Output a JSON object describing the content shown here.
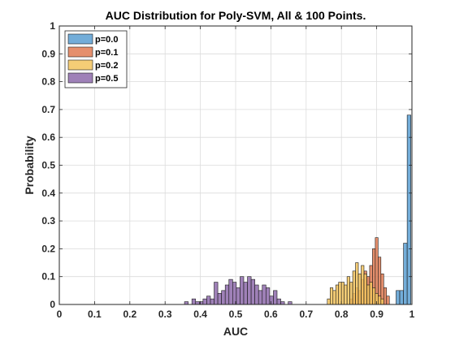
{
  "chart_data": {
    "type": "bar",
    "title": "AUC Distribution for Poly-SVM, All & 100 Points.",
    "xlabel": "AUC",
    "ylabel": "Probability",
    "xlim": [
      0,
      1
    ],
    "ylim": [
      0,
      1
    ],
    "xticks": [
      "0",
      "0.1",
      "0.2",
      "0.3",
      "0.4",
      "0.5",
      "0.6",
      "0.7",
      "0.8",
      "0.9",
      "1"
    ],
    "yticks": [
      "0",
      "0.1",
      "0.2",
      "0.3",
      "0.4",
      "0.5",
      "0.6",
      "0.7",
      "0.8",
      "0.9",
      "1"
    ],
    "grid": true,
    "legend_position": "top-left",
    "series": [
      {
        "name": "p=0.0",
        "color": "#5b9fd2",
        "bin_width": 0.0105,
        "bins": [
          [
            0.955,
            0.05
          ],
          [
            0.9655,
            0.05
          ],
          [
            0.976,
            0.22
          ],
          [
            0.9865,
            0.68
          ]
        ]
      },
      {
        "name": "p=0.1",
        "color": "#e07b54",
        "bin_width": 0.008,
        "bins": [
          [
            0.824,
            0.02
          ],
          [
            0.832,
            0.04
          ],
          [
            0.84,
            0.06
          ],
          [
            0.848,
            0.05
          ],
          [
            0.856,
            0.09
          ],
          [
            0.864,
            0.12
          ],
          [
            0.872,
            0.1
          ],
          [
            0.88,
            0.14
          ],
          [
            0.888,
            0.2
          ],
          [
            0.896,
            0.24
          ],
          [
            0.904,
            0.17
          ],
          [
            0.912,
            0.11
          ],
          [
            0.92,
            0.06
          ],
          [
            0.928,
            0.03
          ]
        ]
      },
      {
        "name": "p=0.2",
        "color": "#f3c45e",
        "bin_width": 0.008,
        "bins": [
          [
            0.76,
            0.02
          ],
          [
            0.768,
            0.06
          ],
          [
            0.776,
            0.05
          ],
          [
            0.784,
            0.07
          ],
          [
            0.792,
            0.08
          ],
          [
            0.8,
            0.08
          ],
          [
            0.808,
            0.07
          ],
          [
            0.816,
            0.1
          ],
          [
            0.824,
            0.08
          ],
          [
            0.832,
            0.12
          ],
          [
            0.84,
            0.15
          ],
          [
            0.848,
            0.11
          ],
          [
            0.856,
            0.14
          ],
          [
            0.864,
            0.11
          ],
          [
            0.872,
            0.07
          ],
          [
            0.88,
            0.08
          ],
          [
            0.888,
            0.06
          ],
          [
            0.896,
            0.04
          ],
          [
            0.904,
            0.03
          ],
          [
            0.912,
            0.02
          ]
        ]
      },
      {
        "name": "p=0.5",
        "color": "#8e6bab",
        "bin_width": 0.0105,
        "bins": [
          [
            0.355,
            0.01
          ],
          [
            0.376,
            0.02
          ],
          [
            0.3865,
            0.01
          ],
          [
            0.397,
            0.01
          ],
          [
            0.4075,
            0.02
          ],
          [
            0.418,
            0.03
          ],
          [
            0.4285,
            0.02
          ],
          [
            0.439,
            0.08
          ],
          [
            0.4495,
            0.04
          ],
          [
            0.46,
            0.05
          ],
          [
            0.4705,
            0.07
          ],
          [
            0.481,
            0.09
          ],
          [
            0.4915,
            0.08
          ],
          [
            0.502,
            0.06
          ],
          [
            0.5125,
            0.1
          ],
          [
            0.523,
            0.08
          ],
          [
            0.5335,
            0.1
          ],
          [
            0.544,
            0.09
          ],
          [
            0.5545,
            0.07
          ],
          [
            0.565,
            0.05
          ],
          [
            0.5755,
            0.07
          ],
          [
            0.586,
            0.06
          ],
          [
            0.5965,
            0.03
          ],
          [
            0.607,
            0.05
          ],
          [
            0.6175,
            0.02
          ],
          [
            0.628,
            0.01
          ],
          [
            0.649,
            0.01
          ]
        ]
      }
    ]
  }
}
